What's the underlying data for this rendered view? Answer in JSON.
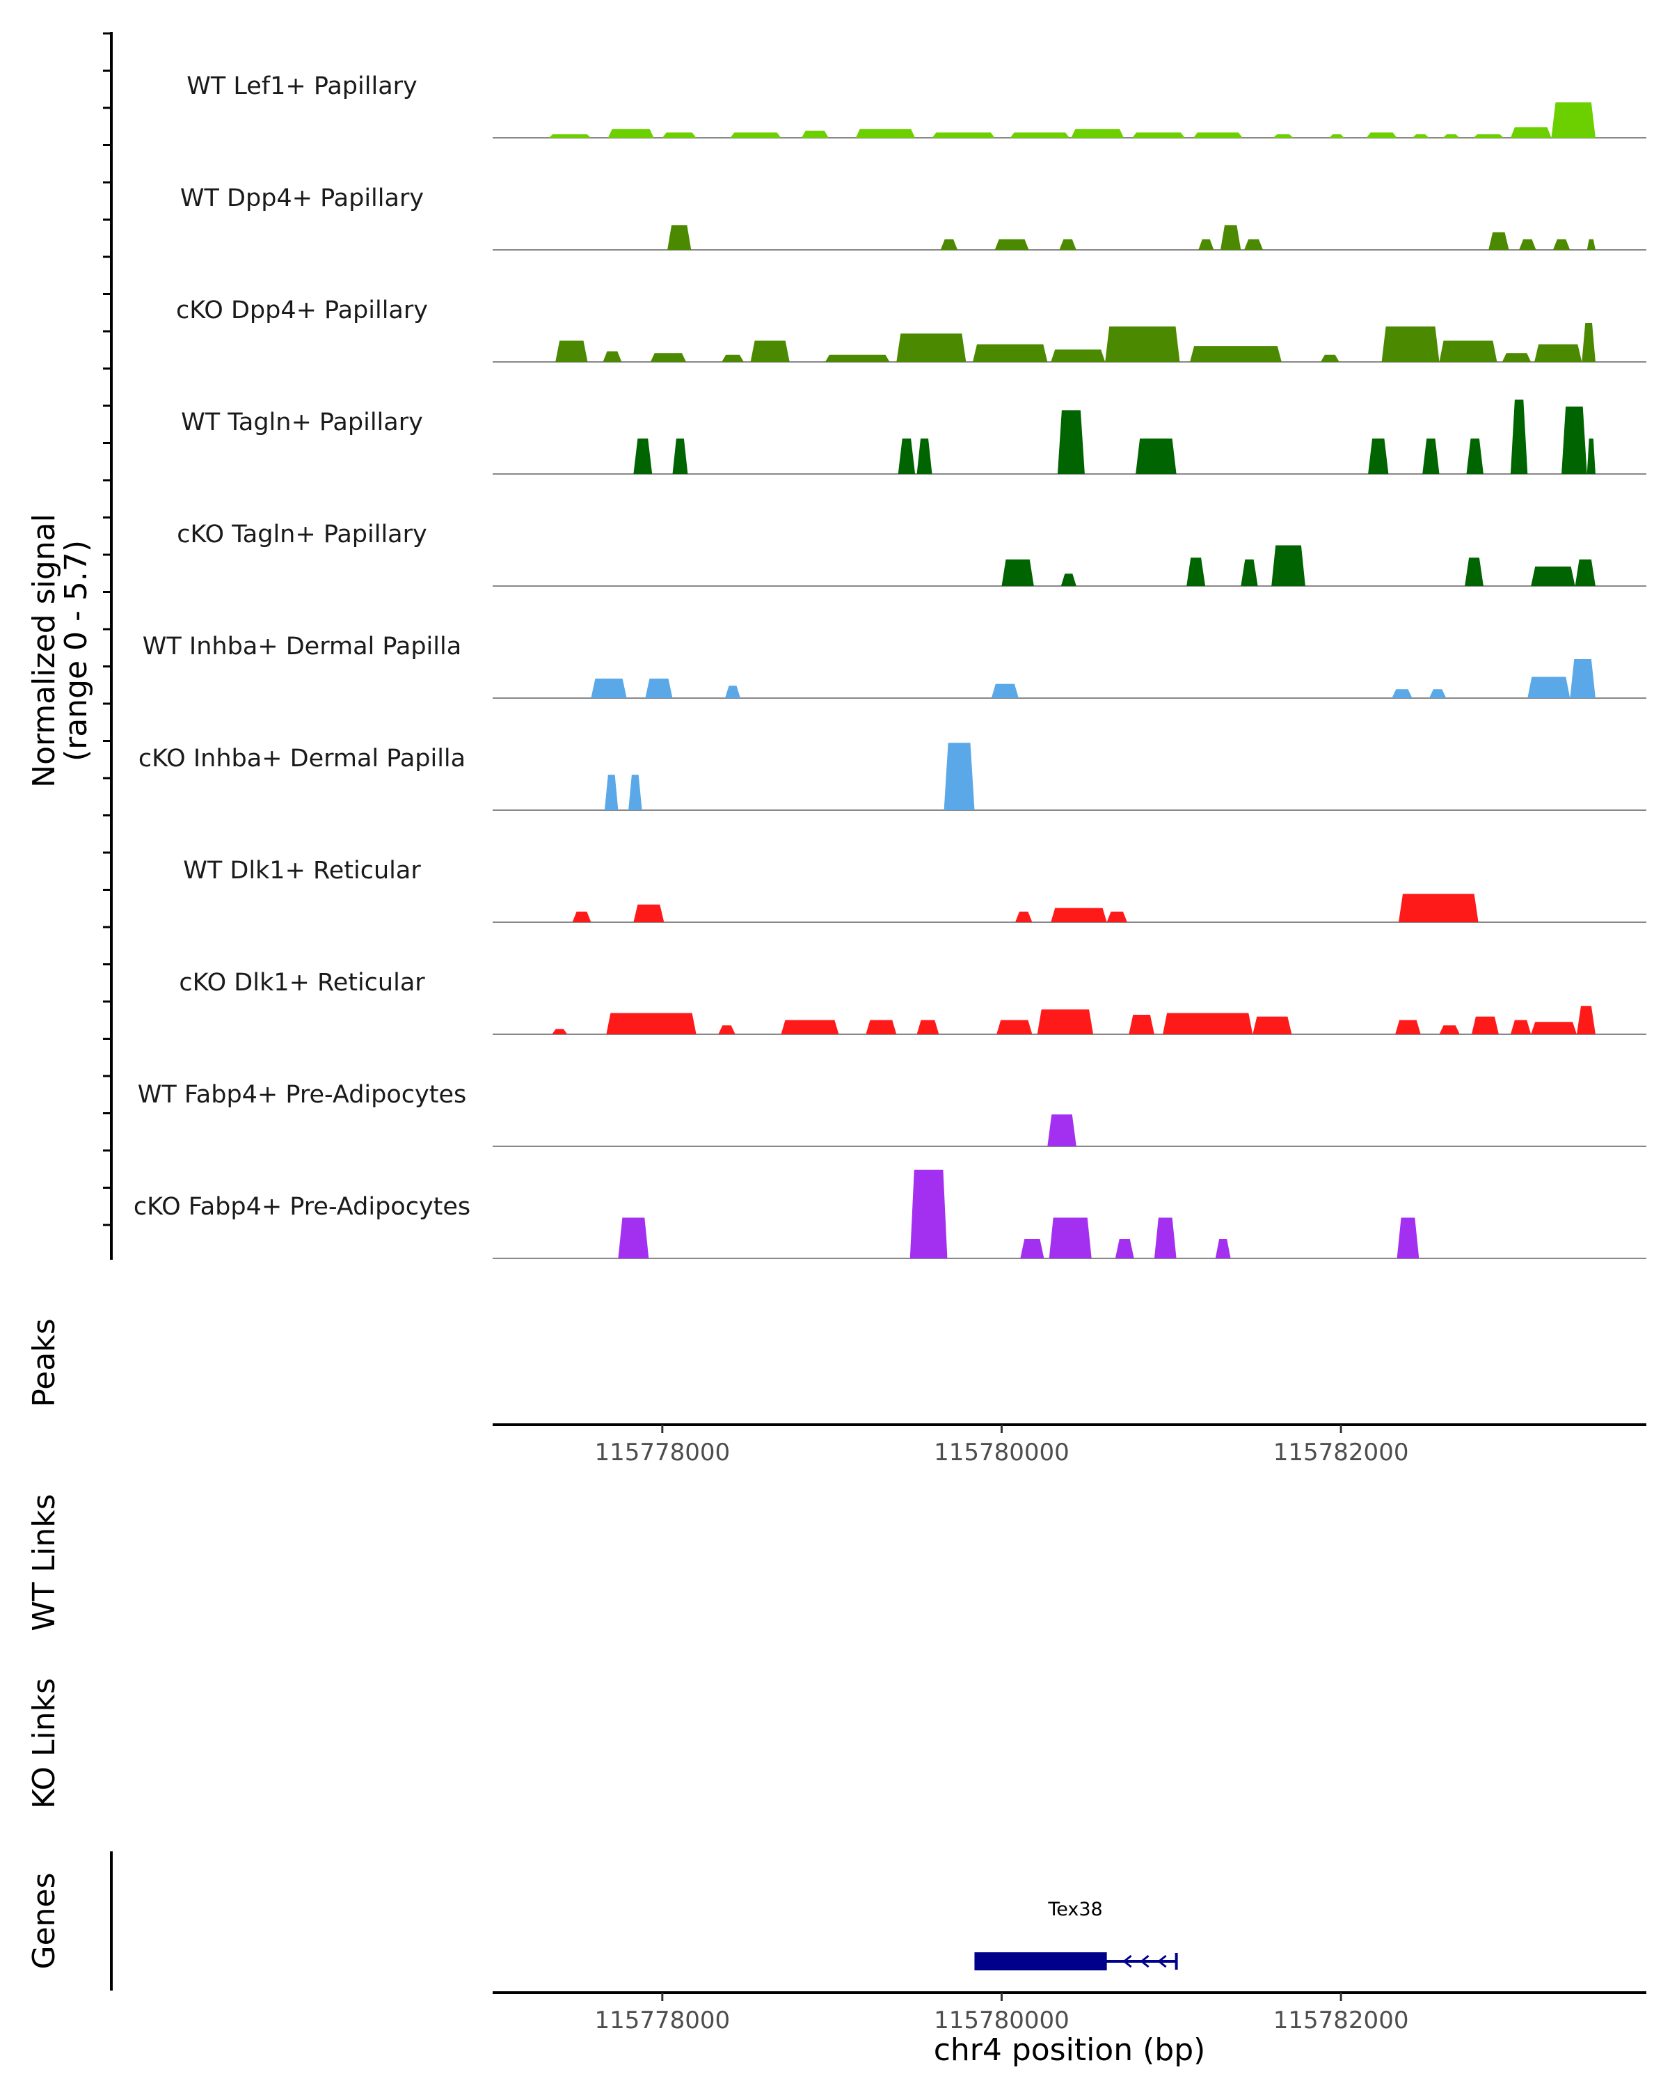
{
  "chart_data": {
    "type": "area",
    "title": "",
    "chromosome": "chr4",
    "xlabel": "chr4 position (bp)",
    "xlim": [
      115777000,
      115783800
    ],
    "x_ticks": [
      115778000,
      115780000,
      115782000
    ],
    "x_tick_labels": [
      "115778000",
      "115780000",
      "115782000"
    ],
    "ylabel": [
      "Normalized signal",
      "(range 0 - 5.7)"
    ],
    "ylim": [
      0,
      5.7
    ],
    "panel_labels": {
      "peaks": "Peaks",
      "wt_links": "WT Links",
      "ko_links": "KO Links",
      "genes": "Genes"
    },
    "series": [
      {
        "name": "WT Lef1+ Papillary",
        "color": "#6ccf00",
        "segments": [
          [
            115777330,
            115777580,
            0.2
          ],
          [
            115777680,
            115777950,
            0.5
          ],
          [
            115778000,
            115778200,
            0.3
          ],
          [
            115778400,
            115778700,
            0.3
          ],
          [
            115778820,
            115778980,
            0.4
          ],
          [
            115779140,
            115779490,
            0.5
          ],
          [
            115779590,
            115779960,
            0.3
          ],
          [
            115780050,
            115780400,
            0.3
          ],
          [
            115780410,
            115780720,
            0.5
          ],
          [
            115780770,
            115781080,
            0.3
          ],
          [
            115781130,
            115781420,
            0.3
          ],
          [
            115781600,
            115781720,
            0.2
          ],
          [
            115781930,
            115782020,
            0.2
          ],
          [
            115782150,
            115782330,
            0.3
          ],
          [
            115782420,
            115782520,
            0.2
          ],
          [
            115782600,
            115782700,
            0.2
          ],
          [
            115782780,
            115782960,
            0.2
          ],
          [
            115783000,
            115783240,
            0.6
          ],
          [
            115783240,
            115783500,
            2.0
          ]
        ]
      },
      {
        "name": "WT Dpp4+ Papillary",
        "color": "#4b8a00",
        "segments": [
          [
            115778030,
            115778170,
            1.4
          ],
          [
            115779640,
            115779740,
            0.6
          ],
          [
            115779960,
            115780160,
            0.6
          ],
          [
            115780340,
            115780440,
            0.6
          ],
          [
            115781160,
            115781250,
            0.6
          ],
          [
            115781290,
            115781410,
            1.4
          ],
          [
            115781430,
            115781540,
            0.6
          ],
          [
            115782870,
            115782990,
            1.0
          ],
          [
            115783050,
            115783150,
            0.6
          ],
          [
            115783250,
            115783350,
            0.6
          ],
          [
            115783450,
            115783500,
            0.6
          ]
        ]
      },
      {
        "name": "cKO Dpp4+ Papillary",
        "color": "#4b8a00",
        "segments": [
          [
            115777370,
            115777560,
            1.2
          ],
          [
            115777650,
            115777760,
            0.6
          ],
          [
            115777930,
            115778140,
            0.5
          ],
          [
            115778350,
            115778480,
            0.4
          ],
          [
            115778520,
            115778750,
            1.2
          ],
          [
            115778960,
            115779340,
            0.4
          ],
          [
            115779380,
            115779790,
            1.6
          ],
          [
            115779830,
            115780270,
            1.0
          ],
          [
            115780290,
            115780610,
            0.7
          ],
          [
            115780610,
            115781050,
            2.0
          ],
          [
            115781110,
            115781650,
            0.9
          ],
          [
            115781880,
            115781990,
            0.4
          ],
          [
            115782240,
            115782580,
            2.0
          ],
          [
            115782580,
            115782920,
            1.2
          ],
          [
            115782950,
            115783120,
            0.5
          ],
          [
            115783140,
            115783420,
            1.0
          ],
          [
            115783420,
            115783500,
            2.2
          ]
        ]
      },
      {
        "name": "WT Tagln+ Papillary",
        "color": "#006400",
        "segments": [
          [
            115777830,
            115777940,
            2.0
          ],
          [
            115778060,
            115778150,
            2.0
          ],
          [
            115779390,
            115779490,
            2.0
          ],
          [
            115779500,
            115779590,
            2.0
          ],
          [
            115780330,
            115780490,
            3.6
          ],
          [
            115780790,
            115781030,
            2.0
          ],
          [
            115782160,
            115782280,
            2.0
          ],
          [
            115782480,
            115782580,
            2.0
          ],
          [
            115782740,
            115782840,
            2.0
          ],
          [
            115783000,
            115783100,
            4.2
          ],
          [
            115783300,
            115783450,
            3.8
          ],
          [
            115783450,
            115783500,
            2.0
          ]
        ]
      },
      {
        "name": "cKO Tagln+ Papillary",
        "color": "#006400",
        "segments": [
          [
            115780000,
            115780190,
            1.5
          ],
          [
            115780350,
            115780440,
            0.7
          ],
          [
            115781090,
            115781200,
            1.6
          ],
          [
            115781410,
            115781510,
            1.5
          ],
          [
            115781590,
            115781790,
            2.3
          ],
          [
            115782730,
            115782840,
            1.6
          ],
          [
            115783120,
            115783380,
            1.1
          ],
          [
            115783380,
            115783500,
            1.5
          ]
        ]
      },
      {
        "name": "WT Inhba+ Dermal Papilla",
        "color": "#5aa8e8",
        "segments": [
          [
            115777580,
            115777790,
            1.1
          ],
          [
            115777900,
            115778060,
            1.1
          ],
          [
            115778370,
            115778460,
            0.7
          ],
          [
            115779940,
            115780100,
            0.8
          ],
          [
            115782300,
            115782420,
            0.5
          ],
          [
            115782520,
            115782620,
            0.5
          ],
          [
            115783100,
            115783350,
            1.2
          ],
          [
            115783350,
            115783500,
            2.2
          ]
        ]
      },
      {
        "name": "cKO Inhba+ Dermal Papilla",
        "color": "#5aa8e8",
        "segments": [
          [
            115777660,
            115777740,
            2.0
          ],
          [
            115777800,
            115777880,
            2.0
          ],
          [
            115779660,
            115779840,
            3.8
          ]
        ]
      },
      {
        "name": "WT Dlk1+ Reticular",
        "color": "#ff1a1a",
        "segments": [
          [
            115777470,
            115777580,
            0.6
          ],
          [
            115777830,
            115778010,
            1.0
          ],
          [
            115780080,
            115780180,
            0.6
          ],
          [
            115780290,
            115780620,
            0.8
          ],
          [
            115780620,
            115780740,
            0.6
          ],
          [
            115782340,
            115782810,
            1.6
          ]
        ]
      },
      {
        "name": "cKO Dlk1+ Reticular",
        "color": "#ff1a1a",
        "segments": [
          [
            115777350,
            115777440,
            0.3
          ],
          [
            115777670,
            115778200,
            1.2
          ],
          [
            115778330,
            115778430,
            0.5
          ],
          [
            115778700,
            115779040,
            0.8
          ],
          [
            115779200,
            115779380,
            0.8
          ],
          [
            115779500,
            115779630,
            0.8
          ],
          [
            115779970,
            115780180,
            0.8
          ],
          [
            115780210,
            115780540,
            1.4
          ],
          [
            115780750,
            115780900,
            1.1
          ],
          [
            115780950,
            115781480,
            1.2
          ],
          [
            115781480,
            115781710,
            1.0
          ],
          [
            115782320,
            115782470,
            0.8
          ],
          [
            115782580,
            115782700,
            0.5
          ],
          [
            115782770,
            115782930,
            1.0
          ],
          [
            115783000,
            115783120,
            0.8
          ],
          [
            115783120,
            115783390,
            0.7
          ],
          [
            115783390,
            115783500,
            1.6
          ]
        ]
      },
      {
        "name": "WT Fabp4+ Pre-Adipocytes",
        "color": "#a330f0",
        "segments": [
          [
            115780270,
            115780440,
            1.8
          ]
        ]
      },
      {
        "name": "cKO Fabp4+ Pre-Adipocytes",
        "color": "#a330f0",
        "segments": [
          [
            115777740,
            115777920,
            2.3
          ],
          [
            115779460,
            115779680,
            5.0
          ],
          [
            115780110,
            115780250,
            1.1
          ],
          [
            115780280,
            115780530,
            2.3
          ],
          [
            115780670,
            115780780,
            1.1
          ],
          [
            115780900,
            115781030,
            2.3
          ],
          [
            115781260,
            115781350,
            1.1
          ],
          [
            115782330,
            115782460,
            2.3
          ]
        ]
      }
    ],
    "genes": [
      {
        "name": "Tex38",
        "start": 115779840,
        "end": 115781030,
        "cds_end": 115780620,
        "strand": "-",
        "color": "#00008b"
      }
    ]
  }
}
